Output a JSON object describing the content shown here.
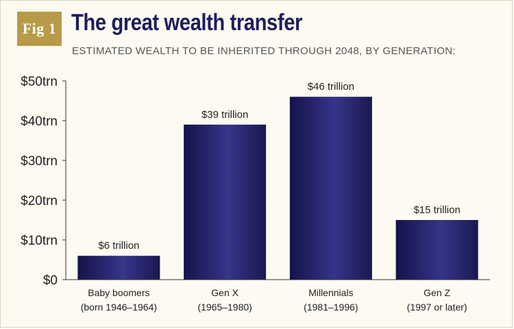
{
  "header": {
    "badge": "Fig 1",
    "title": "The great wealth transfer",
    "subtitle": "ESTIMATED WEALTH TO BE INHERITED THROUGH 2048, BY GENERATION:"
  },
  "colors": {
    "bar_dark": "#14134a",
    "bar_light": "#3a3a8c",
    "badge": "#b89a48",
    "title": "#1f1e5c"
  },
  "chart_data": {
    "type": "bar",
    "categories": [
      [
        "Baby boomers",
        "(born 1946–1964)"
      ],
      [
        "Gen X",
        "(1965–1980)"
      ],
      [
        "Millennials",
        "(1981–1996)"
      ],
      [
        "Gen Z",
        "(1997 or later)"
      ]
    ],
    "values": [
      6,
      39,
      46,
      15
    ],
    "value_unit": "trillion USD",
    "data_labels": [
      "$6 trillion",
      "$39 trillion",
      "$46 trillion",
      "$15 trillion"
    ],
    "ylim": [
      0,
      50
    ],
    "yticks": [
      0,
      10,
      20,
      30,
      40,
      50
    ],
    "ytick_labels": [
      "$0",
      "$10trn",
      "$20trn",
      "$30trn",
      "$40trn",
      "$50trn"
    ],
    "grid": false,
    "legend": "none",
    "xlabel": "",
    "ylabel": ""
  }
}
